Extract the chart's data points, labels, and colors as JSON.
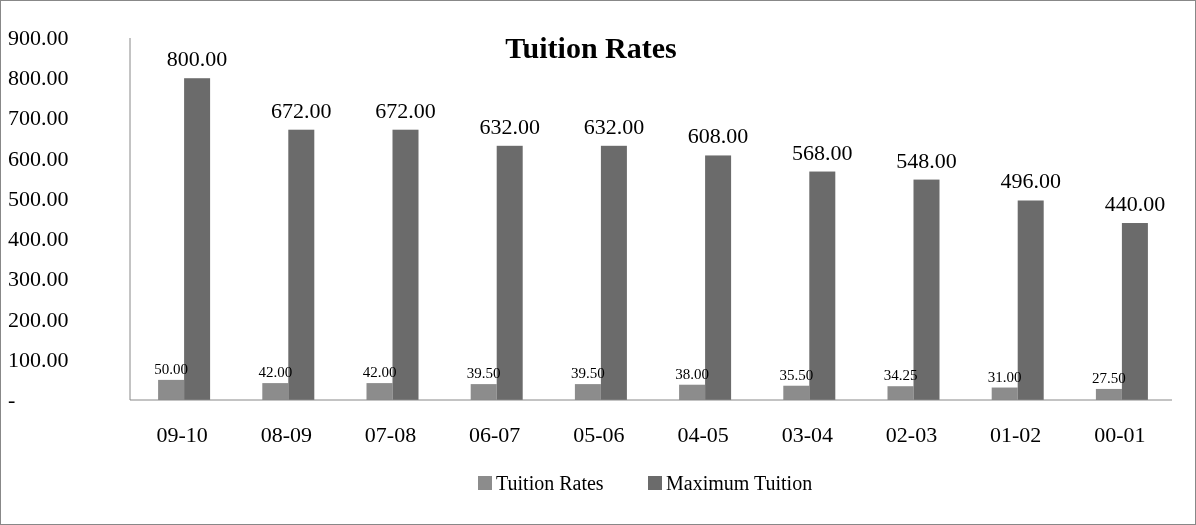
{
  "chart_data": {
    "type": "bar",
    "title": "Tuition Rates",
    "categories": [
      "09-10",
      "08-09",
      "07-08",
      "06-07",
      "05-06",
      "04-05",
      "03-04",
      "02-03",
      "01-02",
      "00-01"
    ],
    "series": [
      {
        "name": "Tuition Rates",
        "color": "#8c8c8c",
        "values": [
          50,
          42,
          42,
          39.5,
          39.5,
          38,
          35.5,
          34.25,
          31,
          27.5
        ],
        "value_labels": [
          "50.00",
          "42.00",
          "42.00",
          "39.50",
          "39.50",
          "38.00",
          "35.50",
          "34.25",
          "31.00",
          "27.50"
        ]
      },
      {
        "name": "Maximum Tuition",
        "color": "#6b6b6b",
        "values": [
          800,
          672,
          672,
          632,
          632,
          608,
          568,
          548,
          496,
          440
        ],
        "value_labels": [
          "800.00",
          "672.00",
          "672.00",
          "632.00",
          "632.00",
          "608.00",
          "568.00",
          "548.00",
          "496.00",
          "440.00"
        ]
      }
    ],
    "ylim": [
      0,
      900
    ],
    "yticks": [
      {
        "value": 0,
        "label": "-"
      },
      {
        "value": 100,
        "label": "100.00"
      },
      {
        "value": 200,
        "label": "200.00"
      },
      {
        "value": 300,
        "label": "300.00"
      },
      {
        "value": 400,
        "label": "400.00"
      },
      {
        "value": 500,
        "label": "500.00"
      },
      {
        "value": 600,
        "label": "600.00"
      },
      {
        "value": 700,
        "label": "700.00"
      },
      {
        "value": 800,
        "label": "800.00"
      },
      {
        "value": 900,
        "label": "900.00"
      }
    ],
    "grid": false,
    "legend": "bottom"
  }
}
